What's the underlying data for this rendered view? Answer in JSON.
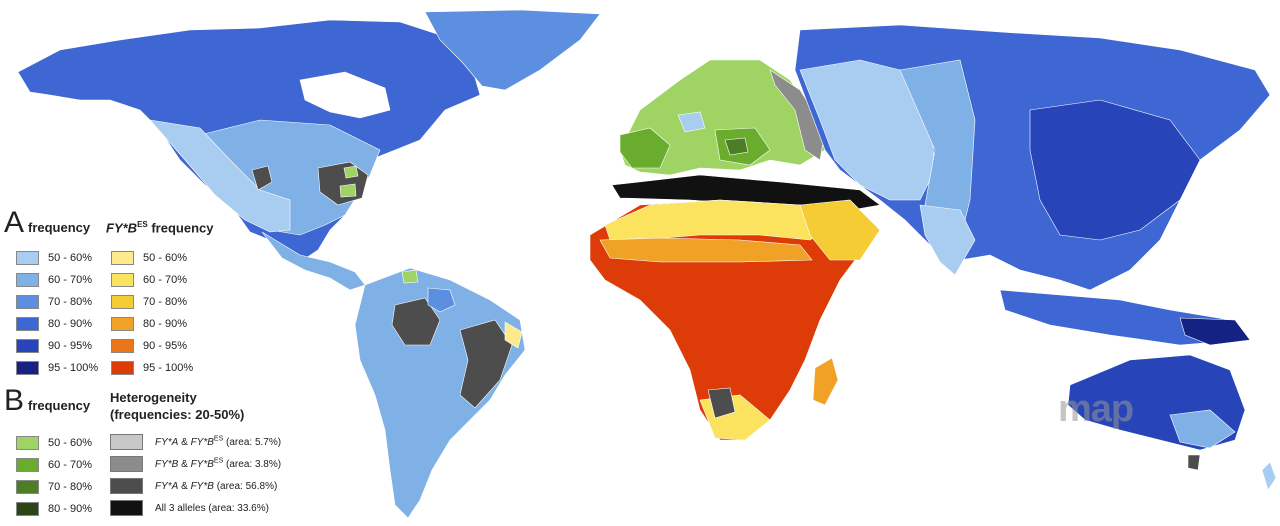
{
  "colors": {
    "ocean": "#ffffff",
    "neutral_land": "#d4d4d4",
    "A_freq": [
      "#a8cdf0",
      "#7fb0e6",
      "#5c8fe0",
      "#3f67d3",
      "#2745b9",
      "#142383"
    ],
    "B_ES_freq": [
      "#fcea8c",
      "#fbe25f",
      "#f6cc35",
      "#f0a227",
      "#eb7619",
      "#dd3c08"
    ],
    "B_freq": [
      "#9fd465",
      "#6aac2e",
      "#4c7f25",
      "#2a4617"
    ],
    "heterogeneity": [
      "#c8c8c8",
      "#8c8c8c",
      "#4d4d4d",
      "#111111"
    ]
  },
  "legend": {
    "A": {
      "letter": "A",
      "title_left": "frequency",
      "title_right_main": "FY*B",
      "title_right_sup": "ES",
      "title_right_rest": " frequency",
      "left_items": [
        "50 - 60%",
        "60 - 70%",
        "70 - 80%",
        "80 - 90%",
        "90 - 95%",
        "95 - 100%"
      ],
      "right_items": [
        "50 - 60%",
        "60 - 70%",
        "70 - 80%",
        "80 - 90%",
        "90 - 95%",
        "95 - 100%"
      ]
    },
    "B": {
      "letter": "B",
      "title_left": "frequency",
      "het_title_1": "Heterogeneity",
      "het_title_2": "(frequencies: 20-50%)",
      "left_items": [
        "50 - 60%",
        "60 - 70%",
        "70 - 80%",
        "80 - 90%"
      ],
      "het_items": [
        {
          "a": "FY*A",
          "amp": " & ",
          "b": "FY*B",
          "sup": "ES",
          "area": " (area: 5.7%)"
        },
        {
          "a": "FY*B",
          "amp": " & ",
          "b": "FY*B",
          "sup": "ES",
          "area": " (area: 3.8%)"
        },
        {
          "a": "FY*A",
          "amp": " & ",
          "b": "FY*B",
          "sup": "",
          "area": " (area: 56.8%)"
        },
        {
          "a": "",
          "amp": "",
          "b": "All 3 alleles",
          "sup": "",
          "area": " (area: 33.6%)"
        }
      ]
    }
  },
  "watermark": "map"
}
